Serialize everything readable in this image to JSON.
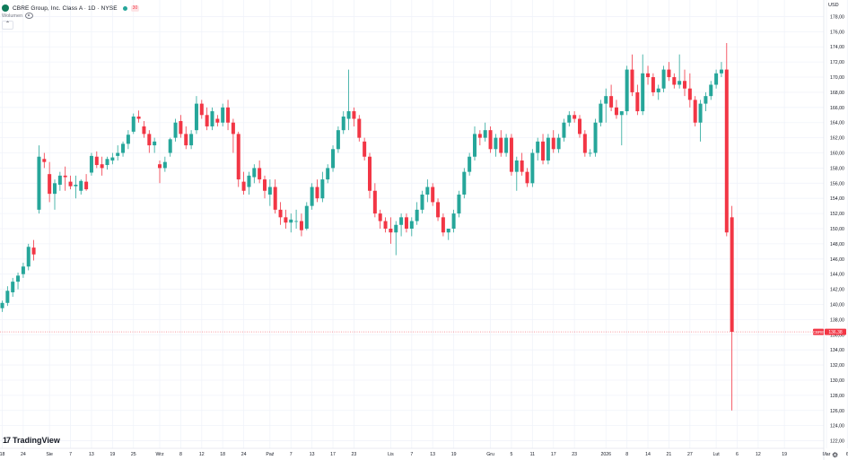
{
  "header": {
    "symbol_title": "CBRE Group, Inc. Class A · 1D · NYSE",
    "badge": "30",
    "volume_label": "Wolumen",
    "collapse_glyph": "⌃"
  },
  "price_axis": {
    "currency": "USD"
  },
  "branding": {
    "logo_text": "TradingView",
    "mark": "17"
  },
  "colors": {
    "up": "#26a69a",
    "down": "#f23645",
    "grid": "#f0f3fa",
    "axis_text": "#131722"
  },
  "chart_data": {
    "type": "candlestick",
    "ylim": [
      121,
      179
    ],
    "y_ticks": [
      122,
      124,
      126,
      128,
      130,
      132,
      134,
      136,
      138,
      140,
      142,
      144,
      146,
      148,
      150,
      152,
      154,
      156,
      158,
      160,
      162,
      164,
      166,
      168,
      170,
      172,
      174,
      176,
      178
    ],
    "x_ticks": [
      {
        "label": "18",
        "index": 0
      },
      {
        "label": "24",
        "index": 4
      },
      {
        "label": "Sie",
        "index": 9
      },
      {
        "label": "7",
        "index": 13
      },
      {
        "label": "13",
        "index": 17
      },
      {
        "label": "19",
        "index": 21
      },
      {
        "label": "25",
        "index": 25
      },
      {
        "label": "Wrz",
        "index": 30
      },
      {
        "label": "8",
        "index": 34
      },
      {
        "label": "12",
        "index": 38
      },
      {
        "label": "18",
        "index": 42
      },
      {
        "label": "24",
        "index": 46
      },
      {
        "label": "Paź",
        "index": 51
      },
      {
        "label": "7",
        "index": 55
      },
      {
        "label": "13",
        "index": 59
      },
      {
        "label": "17",
        "index": 63
      },
      {
        "label": "23",
        "index": 67
      },
      {
        "label": "Lis",
        "index": 74
      },
      {
        "label": "7",
        "index": 78
      },
      {
        "label": "13",
        "index": 82
      },
      {
        "label": "19",
        "index": 86
      },
      {
        "label": "Gru",
        "index": 93
      },
      {
        "label": "5",
        "index": 97
      },
      {
        "label": "11",
        "index": 101
      },
      {
        "label": "17",
        "index": 105
      },
      {
        "label": "23",
        "index": 109
      },
      {
        "label": "2026",
        "index": 115
      },
      {
        "label": "8",
        "index": 119
      },
      {
        "label": "14",
        "index": 123
      },
      {
        "label": "21",
        "index": 127
      },
      {
        "label": "27",
        "index": 131
      },
      {
        "label": "Lut",
        "index": 136
      },
      {
        "label": "6",
        "index": 140
      },
      {
        "label": "12",
        "index": 144
      },
      {
        "label": "19",
        "index": 149
      },
      {
        "label": "Mar",
        "index": 157
      },
      {
        "label": "6",
        "index": 161
      }
    ],
    "last_price": {
      "symbol": "CBRE",
      "value": "136,38",
      "price": 136.38
    },
    "candles": [
      [
        139.5,
        140.5,
        139.0,
        140.2
      ],
      [
        140.2,
        142.4,
        139.8,
        141.8
      ],
      [
        141.6,
        143.5,
        141.0,
        143.0
      ],
      [
        143.0,
        144.2,
        142.0,
        143.8
      ],
      [
        144.0,
        145.5,
        143.5,
        145.0
      ],
      [
        145.0,
        148.0,
        144.5,
        147.6
      ],
      [
        147.5,
        148.5,
        145.8,
        146.6
      ],
      [
        152.5,
        161.0,
        152.0,
        159.5
      ],
      [
        159.2,
        160.0,
        158.0,
        158.8
      ],
      [
        157.2,
        158.8,
        153.5,
        154.6
      ],
      [
        154.6,
        156.5,
        152.5,
        156.0
      ],
      [
        155.8,
        157.5,
        155.0,
        157.0
      ],
      [
        157.0,
        158.2,
        155.0,
        156.8
      ],
      [
        156.2,
        157.0,
        155.2,
        155.6
      ],
      [
        155.6,
        157.0,
        154.0,
        155.8
      ],
      [
        155.0,
        156.5,
        154.5,
        156.3
      ],
      [
        156.2,
        157.2,
        155.0,
        155.2
      ],
      [
        157.4,
        160.0,
        157.0,
        159.6
      ],
      [
        159.5,
        160.2,
        158.0,
        158.4
      ],
      [
        158.5,
        159.5,
        157.0,
        158.0
      ],
      [
        158.4,
        159.5,
        157.8,
        159.2
      ],
      [
        159.0,
        160.0,
        158.5,
        159.4
      ],
      [
        159.6,
        161.0,
        159.0,
        160.0
      ],
      [
        160.0,
        161.5,
        159.5,
        161.2
      ],
      [
        161.2,
        163.0,
        160.5,
        162.4
      ],
      [
        162.8,
        165.2,
        162.5,
        164.8
      ],
      [
        164.8,
        165.6,
        164.0,
        164.5
      ],
      [
        163.5,
        164.2,
        162.0,
        162.5
      ],
      [
        162.5,
        163.0,
        160.0,
        161.0
      ],
      [
        161.0,
        162.0,
        160.0,
        161.5
      ],
      [
        158.5,
        159.0,
        156.0,
        158.0
      ],
      [
        158.0,
        159.5,
        157.5,
        158.8
      ],
      [
        160.0,
        162.0,
        159.5,
        161.8
      ],
      [
        162.0,
        164.5,
        161.5,
        164.0
      ],
      [
        164.2,
        165.0,
        162.0,
        162.5
      ],
      [
        162.5,
        163.5,
        160.5,
        161.0
      ],
      [
        161.0,
        163.0,
        160.5,
        162.5
      ],
      [
        163.0,
        167.5,
        162.5,
        166.5
      ],
      [
        166.5,
        167.0,
        164.5,
        165.0
      ],
      [
        165.0,
        166.0,
        163.0,
        163.5
      ],
      [
        163.5,
        166.0,
        163.0,
        165.5
      ],
      [
        164.5,
        165.0,
        163.5,
        164.0
      ],
      [
        164.0,
        166.5,
        163.5,
        166.0
      ],
      [
        166.0,
        167.0,
        163.0,
        164.0
      ],
      [
        164.0,
        164.5,
        160.0,
        162.5
      ],
      [
        162.5,
        162.8,
        155.5,
        156.5
      ],
      [
        156.2,
        157.5,
        154.5,
        155.0
      ],
      [
        155.5,
        157.5,
        154.5,
        157.0
      ],
      [
        156.8,
        158.5,
        156.0,
        158.0
      ],
      [
        158.0,
        159.0,
        156.0,
        156.5
      ],
      [
        156.5,
        157.0,
        154.0,
        155.0
      ],
      [
        154.5,
        156.5,
        153.0,
        155.5
      ],
      [
        155.5,
        156.5,
        152.0,
        152.5
      ],
      [
        152.5,
        153.5,
        150.5,
        151.5
      ],
      [
        151.5,
        152.5,
        150.0,
        150.8
      ],
      [
        150.8,
        152.0,
        149.5,
        151.2
      ],
      [
        151.0,
        152.5,
        150.0,
        151.0
      ],
      [
        151.0,
        152.0,
        149.0,
        149.8
      ],
      [
        150.0,
        153.5,
        149.8,
        153.0
      ],
      [
        153.0,
        156.0,
        152.5,
        155.5
      ],
      [
        155.5,
        156.5,
        153.5,
        154.0
      ],
      [
        154.0,
        157.5,
        153.5,
        156.5
      ],
      [
        156.5,
        158.5,
        156.0,
        158.0
      ],
      [
        158.0,
        161.0,
        157.5,
        160.5
      ],
      [
        160.5,
        163.5,
        160.0,
        163.0
      ],
      [
        163.0,
        165.5,
        162.5,
        164.8
      ],
      [
        164.5,
        171.0,
        163.0,
        165.5
      ],
      [
        165.5,
        166.0,
        163.5,
        164.5
      ],
      [
        164.5,
        165.0,
        161.5,
        162.0
      ],
      [
        161.5,
        162.0,
        159.0,
        159.5
      ],
      [
        159.5,
        160.0,
        154.0,
        155.0
      ],
      [
        155.0,
        156.0,
        151.5,
        152.0
      ],
      [
        152.0,
        152.5,
        150.0,
        151.0
      ],
      [
        151.0,
        151.5,
        149.5,
        150.0
      ],
      [
        150.0,
        151.5,
        148.0,
        149.5
      ],
      [
        149.5,
        151.0,
        146.5,
        150.5
      ],
      [
        150.5,
        152.0,
        149.0,
        151.5
      ],
      [
        151.5,
        152.0,
        149.5,
        150.0
      ],
      [
        150.0,
        151.5,
        149.0,
        151.0
      ],
      [
        151.0,
        153.5,
        150.5,
        152.5
      ],
      [
        152.5,
        155.0,
        152.0,
        154.5
      ],
      [
        154.5,
        156.5,
        153.5,
        155.5
      ],
      [
        155.5,
        156.0,
        153.0,
        153.5
      ],
      [
        153.5,
        154.0,
        151.0,
        151.5
      ],
      [
        151.5,
        152.0,
        149.0,
        149.5
      ],
      [
        149.5,
        150.0,
        148.5,
        150.0
      ],
      [
        150.0,
        152.5,
        149.5,
        152.0
      ],
      [
        152.0,
        155.0,
        151.5,
        154.5
      ],
      [
        154.5,
        158.0,
        154.0,
        157.5
      ],
      [
        157.5,
        160.0,
        157.0,
        159.5
      ],
      [
        159.5,
        163.5,
        159.0,
        162.5
      ],
      [
        162.5,
        163.0,
        161.0,
        162.0
      ],
      [
        162.0,
        164.0,
        161.5,
        163.0
      ],
      [
        163.0,
        163.5,
        160.0,
        160.5
      ],
      [
        160.5,
        162.5,
        159.5,
        162.0
      ],
      [
        162.0,
        163.0,
        159.5,
        160.0
      ],
      [
        160.0,
        162.5,
        159.5,
        162.0
      ],
      [
        162.0,
        162.5,
        157.0,
        157.5
      ],
      [
        157.5,
        159.5,
        155.0,
        159.0
      ],
      [
        159.0,
        160.0,
        157.0,
        157.5
      ],
      [
        157.5,
        158.0,
        155.5,
        156.0
      ],
      [
        156.0,
        160.5,
        155.5,
        160.0
      ],
      [
        160.0,
        162.0,
        159.0,
        161.5
      ],
      [
        161.5,
        162.5,
        158.5,
        159.0
      ],
      [
        159.0,
        162.5,
        158.5,
        162.0
      ],
      [
        162.0,
        163.0,
        160.0,
        160.5
      ],
      [
        160.5,
        162.5,
        160.0,
        162.0
      ],
      [
        162.0,
        164.5,
        161.5,
        164.0
      ],
      [
        164.0,
        165.5,
        163.5,
        165.0
      ],
      [
        165.0,
        165.5,
        164.0,
        164.5
      ],
      [
        164.5,
        165.0,
        162.0,
        162.5
      ],
      [
        162.5,
        163.0,
        159.5,
        160.0
      ],
      [
        160.0,
        160.5,
        159.5,
        160.0
      ],
      [
        160.0,
        164.5,
        159.5,
        164.0
      ],
      [
        164.0,
        167.0,
        163.5,
        166.5
      ],
      [
        166.5,
        168.5,
        164.0,
        167.5
      ],
      [
        167.5,
        169.0,
        165.5,
        166.0
      ],
      [
        166.0,
        167.0,
        164.5,
        165.0
      ],
      [
        165.0,
        165.5,
        161.0,
        165.5
      ],
      [
        165.5,
        171.5,
        165.0,
        171.0
      ],
      [
        171.0,
        173.0,
        167.5,
        168.0
      ],
      [
        168.0,
        169.0,
        165.0,
        165.5
      ],
      [
        165.5,
        173.0,
        165.0,
        170.5
      ],
      [
        170.5,
        171.5,
        169.0,
        170.0
      ],
      [
        170.0,
        170.5,
        167.5,
        168.0
      ],
      [
        168.0,
        169.0,
        167.0,
        168.5
      ],
      [
        168.5,
        171.5,
        168.0,
        171.0
      ],
      [
        171.0,
        172.0,
        169.5,
        170.0
      ],
      [
        170.0,
        170.5,
        168.5,
        169.0
      ],
      [
        169.0,
        173.0,
        168.5,
        169.5
      ],
      [
        169.5,
        171.0,
        167.5,
        168.5
      ],
      [
        168.5,
        170.5,
        166.0,
        167.0
      ],
      [
        167.0,
        167.5,
        163.5,
        164.0
      ],
      [
        164.0,
        167.0,
        161.5,
        166.5
      ],
      [
        166.5,
        168.0,
        165.5,
        167.5
      ],
      [
        167.5,
        169.5,
        167.0,
        169.0
      ],
      [
        169.0,
        171.0,
        168.5,
        170.5
      ],
      [
        170.5,
        172.0,
        170.0,
        171.0
      ],
      [
        171.0,
        174.5,
        149.0,
        149.5
      ],
      [
        151.5,
        153.0,
        126.0,
        136.38
      ]
    ]
  }
}
